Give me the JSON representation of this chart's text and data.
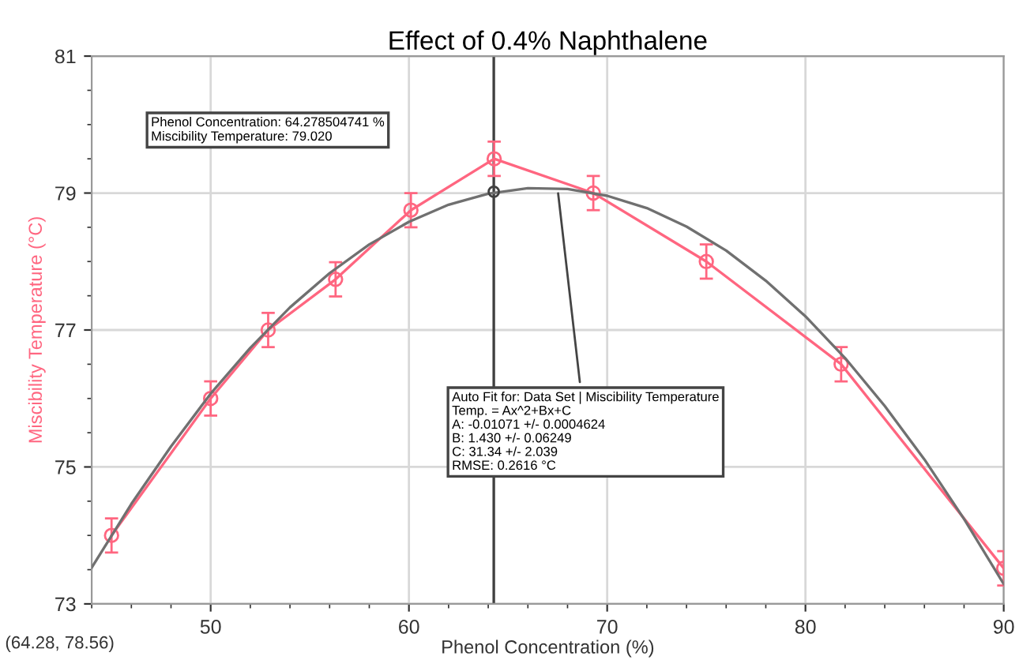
{
  "chart_data": {
    "type": "line",
    "title": "Effect of 0.4% Naphthalene",
    "xlabel": "Phenol Concentration (%)",
    "ylabel": "Miscibility Temperature (°C)",
    "xlim": [
      44,
      90
    ],
    "xticks": [
      50,
      60,
      70,
      80,
      90
    ],
    "ylim": [
      73,
      81
    ],
    "yticks": [
      73,
      75,
      77,
      79,
      81
    ],
    "grid": true,
    "legend": false,
    "marker": "circle",
    "line_style": "solid",
    "series": [
      {
        "type": "line",
        "color": "#ff6680",
        "x": [
          45,
          50,
          52.9,
          56.3,
          60.1,
          64.3,
          69.3,
          75,
          81.8,
          90
        ],
        "values": [
          74.0,
          76.0,
          77.0,
          77.74,
          78.75,
          79.5,
          79.0,
          78.0,
          76.5,
          73.52
        ],
        "errors": [
          0.25,
          0.25,
          0.25,
          0.25,
          0.25,
          0.25,
          0.25,
          0.25,
          0.25,
          0.25
        ]
      },
      {
        "color": "#707070",
        "marker": "none",
        "x": [
          44,
          46,
          48,
          50,
          52,
          54,
          56,
          58,
          60,
          62,
          64,
          66,
          68,
          70,
          72,
          74,
          76,
          78,
          80,
          82,
          84,
          86,
          88,
          90
        ],
        "values": [
          73.53,
          74.46,
          75.3,
          76.07,
          76.74,
          77.33,
          77.83,
          78.25,
          78.58,
          78.83,
          78.99,
          79.07,
          79.06,
          78.96,
          78.78,
          78.51,
          78.16,
          77.72,
          77.2,
          76.59,
          75.89,
          75.11,
          74.24,
          73.29
        ]
      },
      {
        "type": "scatter",
        "color": "#404040",
        "x": [
          64.28
        ],
        "values": [
          79.02
        ]
      }
    ],
    "ref_lines": [
      {
        "axis": "x",
        "value": 64.28,
        "color": "#404040"
      }
    ],
    "annotations": [
      "Phenol Concentration: 64.278504741 %\nMiscibility Temperature: 79.020",
      {
        "text": "Auto Fit for: Data Set | Miscibility Temperature\nTemp. = Ax^2+Bx+C\nA: -0.01071 +/- 0.0004624\nB: 1.430 +/- 0.06249\nC: 31.34 +/- 2.039\nRMSE: 0.2616 °C",
        "x": 67.5,
        "y": 79.06
      },
      "(64.28, 78.56)"
    ]
  }
}
